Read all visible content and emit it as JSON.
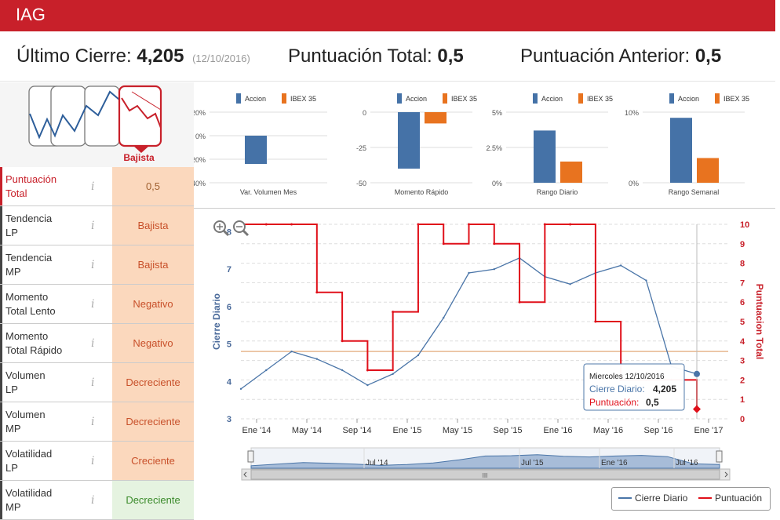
{
  "header": {
    "title": "IAG"
  },
  "summary": {
    "close_label": "Último Cierre:",
    "close_value": "4,205",
    "close_date": "(12/10/2016)",
    "total_label": "Puntuación Total:",
    "total_value": "0,5",
    "prev_label": "Puntuación Anterior:",
    "prev_value": "0,5"
  },
  "trend": {
    "label": "Bajista"
  },
  "indicators": [
    {
      "line1": "Puntuación",
      "line2": "Total",
      "value": "0,5"
    },
    {
      "line1": "Tendencia",
      "line2": "LP",
      "value": "Bajista"
    },
    {
      "line1": "Tendencia",
      "line2": "MP",
      "value": "Bajista"
    },
    {
      "line1": "Momento",
      "line2": "Total Lento",
      "value": "Negativo"
    },
    {
      "line1": "Momento",
      "line2": "Total Rápido",
      "value": "Negativo"
    },
    {
      "line1": "Volumen",
      "line2": "LP",
      "value": "Decreciente"
    },
    {
      "line1": "Volumen",
      "line2": "MP",
      "value": "Decreciente"
    },
    {
      "line1": "Volatilidad",
      "line2": "LP",
      "value": "Creciente"
    },
    {
      "line1": "Volatilidad",
      "line2": "MP",
      "value": "Decreciente"
    }
  ],
  "info_glyph": "i",
  "colors": {
    "accion": "#4572a7",
    "ibex": "#e8731f",
    "brand": "#c8202a",
    "positive": "#3a8a2a"
  },
  "chart_data": [
    {
      "type": "bar",
      "title": "",
      "xlabel": "Var. Volumen Mes",
      "categories": [
        "Var. Volumen Mes"
      ],
      "series": [
        {
          "name": "Accion",
          "values": [
            -24
          ]
        },
        {
          "name": "IBEX 35",
          "values": [
            0
          ]
        }
      ],
      "ylim": [
        -40,
        20
      ],
      "yticks": [
        "20%",
        "0%",
        "-20%",
        "-40%"
      ],
      "legend": "top"
    },
    {
      "type": "bar",
      "title": "",
      "xlabel": "Momento Rápido",
      "categories": [
        "Momento Rápido"
      ],
      "series": [
        {
          "name": "Accion",
          "values": [
            -40
          ]
        },
        {
          "name": "IBEX 35",
          "values": [
            -8
          ]
        }
      ],
      "ylim": [
        -50,
        0
      ],
      "yticks": [
        "0",
        "-25",
        "-50"
      ],
      "legend": "top"
    },
    {
      "type": "bar",
      "title": "",
      "xlabel": "Rango Diario",
      "categories": [
        "Rango Diario"
      ],
      "series": [
        {
          "name": "Accion",
          "values": [
            3.7
          ]
        },
        {
          "name": "IBEX 35",
          "values": [
            1.5
          ]
        }
      ],
      "ylim": [
        0,
        5
      ],
      "yticks": [
        "5%",
        "2.5%",
        "0%"
      ],
      "legend": "top"
    },
    {
      "type": "bar",
      "title": "",
      "xlabel": "Rango Semanal",
      "categories": [
        "Rango Semanal"
      ],
      "series": [
        {
          "name": "Accion",
          "values": [
            9.2
          ]
        },
        {
          "name": "IBEX 35",
          "values": [
            3.5
          ]
        }
      ],
      "ylim": [
        0,
        10
      ],
      "yticks": [
        "10%",
        "0%"
      ],
      "legend": "top"
    },
    {
      "type": "line",
      "ylabel": "Cierre Diario",
      "y2label": "Puntuacion Total",
      "ylim": [
        3,
        8.2
      ],
      "y2lim": [
        0,
        10
      ],
      "yticks": [
        "3",
        "4",
        "5",
        "6",
        "7",
        "8"
      ],
      "y2ticks": [
        "0",
        "1",
        "2",
        "3",
        "4",
        "5",
        "6",
        "7",
        "8",
        "9",
        "10"
      ],
      "xticks": [
        "Ene '14",
        "May '14",
        "Sep '14",
        "Ene '15",
        "May '15",
        "Sep '15",
        "Ene '16",
        "May '16",
        "Sep '16",
        "Ene '17"
      ],
      "navigator_ticks": [
        "Jul '14",
        "Jul '15",
        "Ene '16",
        "Jul '16"
      ],
      "navigator_scroll": "III",
      "grid": true,
      "x": [
        "2013-11",
        "2014-01",
        "2014-03",
        "2014-05",
        "2014-07",
        "2014-09",
        "2014-11",
        "2015-01",
        "2015-03",
        "2015-05",
        "2015-07",
        "2015-09",
        "2015-11",
        "2016-01",
        "2016-03",
        "2016-05",
        "2016-07",
        "2016-09",
        "2016-10"
      ],
      "series": [
        {
          "name": "Cierre Diario",
          "axis": "left",
          "values": [
            3.8,
            4.3,
            4.8,
            4.6,
            4.3,
            3.9,
            4.2,
            4.7,
            5.7,
            6.9,
            7.0,
            7.3,
            6.8,
            6.6,
            6.9,
            7.1,
            6.7,
            4.4,
            4.2
          ]
        },
        {
          "name": "Puntuación",
          "axis": "right",
          "values": [
            10,
            10,
            10,
            6.5,
            4,
            2.5,
            5.5,
            10,
            9,
            10,
            9,
            6,
            10,
            10,
            5,
            2,
            2,
            2,
            0.5
          ]
        }
      ],
      "reference_line": 4.8,
      "tooltip": {
        "date": "Miercoles 12/10/2016",
        "close_label": "Cierre Diario:",
        "close_value": "4,205",
        "score_label": "Puntuación:",
        "score_value": "0,5"
      },
      "legend": "bottom-right"
    }
  ]
}
